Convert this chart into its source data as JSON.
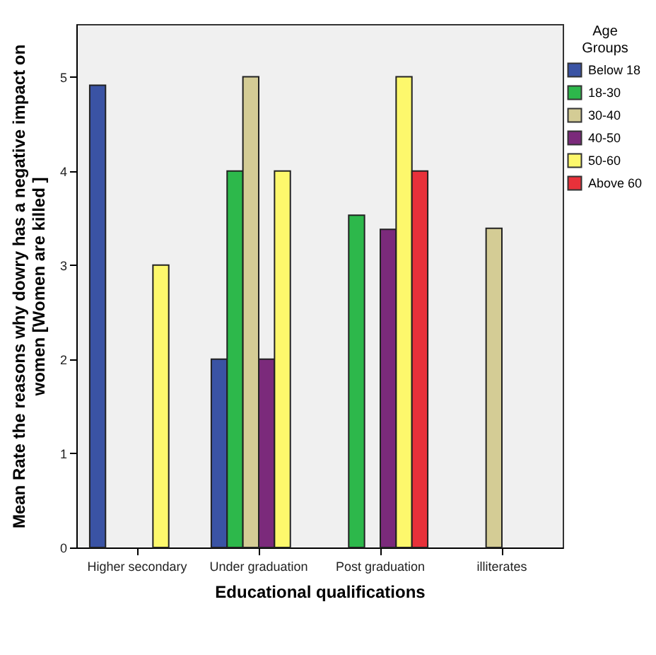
{
  "chart_data": {
    "type": "bar",
    "xlabel": "Educational qualifications",
    "ylabel": "Mean Rate the reasons why dowry has a negative impact on women  [Women are killed ]",
    "legend_title": "Age Groups",
    "categories": [
      "Higher secondary",
      "Under graduation",
      "Post graduation",
      "illiterates"
    ],
    "series": [
      {
        "name": "Below 18",
        "color": "#3a53a4",
        "values": [
          4.91,
          2,
          null,
          null
        ]
      },
      {
        "name": "18-30",
        "color": "#2db84b",
        "values": [
          null,
          4,
          3.53,
          null
        ]
      },
      {
        "name": "30-40",
        "color": "#d4cc95",
        "values": [
          null,
          5,
          null,
          3.39
        ]
      },
      {
        "name": "40-50",
        "color": "#7b2a7b",
        "values": [
          null,
          2,
          3.38,
          null
        ]
      },
      {
        "name": "50-60",
        "color": "#fdf86c",
        "values": [
          3,
          4,
          5,
          null
        ]
      },
      {
        "name": "Above 60",
        "color": "#e8313a",
        "values": [
          null,
          null,
          4,
          null
        ]
      }
    ],
    "ylim": [
      0,
      5.56
    ],
    "yticks": [
      0,
      1,
      2,
      3,
      4,
      5
    ],
    "grid": false,
    "legend": "top right"
  }
}
